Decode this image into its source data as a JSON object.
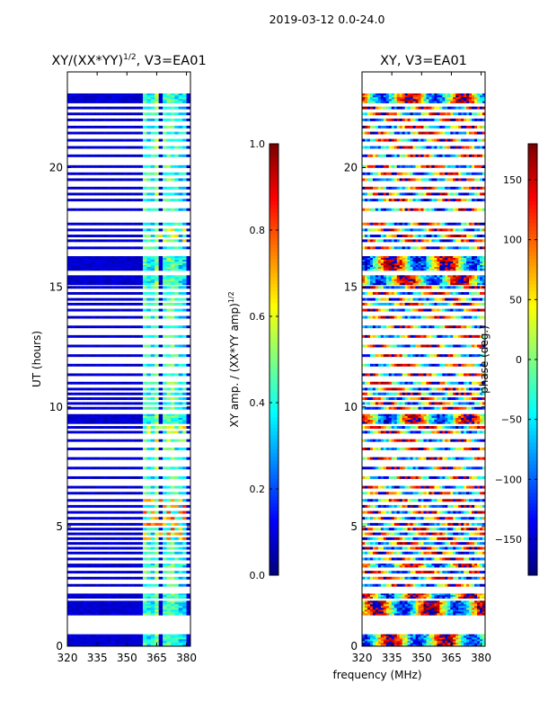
{
  "chart_data": {
    "type": "heatmap",
    "suptitle": "2019-03-12 0.0-24.0",
    "xlabel": "frequency (MHz)",
    "panels": [
      {
        "id": "amp",
        "title": "XY/(XX*YY)",
        "title_superscript": "1/2",
        "title_suffix": ", V3=EA01",
        "ylabel": "UT (hours)",
        "xlim": [
          320,
          382
        ],
        "ylim": [
          0,
          24
        ],
        "xticks": [
          320,
          335,
          350,
          365,
          380
        ],
        "yticks": [
          0,
          5,
          10,
          15,
          20
        ],
        "colormap": "jet",
        "colorbar": {
          "label": "XY amp. / (XX*YY amp)",
          "label_superscript": "1/2",
          "range": [
            0.0,
            1.0
          ],
          "ticks": [
            "0.0",
            "0.2",
            "0.4",
            "0.6",
            "0.8",
            "1.0"
          ],
          "tick_values": [
            0.0,
            0.2,
            0.4,
            0.6,
            0.8,
            1.0
          ]
        },
        "base_value": 0.05,
        "bright_channels": [
          {
            "f0": 358,
            "f1": 360.5,
            "value": 0.45
          },
          {
            "f0": 361,
            "f1": 363,
            "value": 0.38
          },
          {
            "f0": 363.5,
            "f1": 366,
            "value": 0.5
          },
          {
            "f0": 368,
            "f1": 370.5,
            "value": 0.42
          },
          {
            "f0": 371,
            "f1": 373.5,
            "value": 0.46
          },
          {
            "f0": 375,
            "f1": 376.5,
            "value": 0.4
          },
          {
            "f0": 377,
            "f1": 379,
            "value": 0.35
          }
        ]
      },
      {
        "id": "phase",
        "title": "XY, V3=EA01",
        "ylabel": "",
        "xlim": [
          320,
          382
        ],
        "ylim": [
          0,
          24
        ],
        "xticks": [
          320,
          335,
          350,
          365,
          380
        ],
        "yticks": [
          0,
          5,
          10,
          15,
          20
        ],
        "colormap": "jet",
        "colorbar": {
          "label": "phase (deg.)",
          "range": [
            -180,
            180
          ],
          "ticks": [
            "−150",
            "−100",
            "−50",
            "0",
            "50",
            "100",
            "150"
          ],
          "tick_values": [
            -150,
            -100,
            -50,
            0,
            50,
            100,
            150
          ]
        }
      }
    ],
    "scan_intervals_hours": [
      [
        0.0,
        0.5
      ],
      [
        1.3,
        1.9
      ],
      [
        2.0,
        2.2
      ],
      [
        2.5,
        2.6
      ],
      [
        2.8,
        2.9
      ],
      [
        3.05,
        3.15
      ],
      [
        3.3,
        3.45
      ],
      [
        3.6,
        3.7
      ],
      [
        3.85,
        3.95
      ],
      [
        4.05,
        4.15
      ],
      [
        4.25,
        4.35
      ],
      [
        4.45,
        4.55
      ],
      [
        4.65,
        4.75
      ],
      [
        4.85,
        4.95
      ],
      [
        5.05,
        5.15
      ],
      [
        5.3,
        5.4
      ],
      [
        5.55,
        5.65
      ],
      [
        5.8,
        5.9
      ],
      [
        6.05,
        6.15
      ],
      [
        6.35,
        6.45
      ],
      [
        6.6,
        6.7
      ],
      [
        7.0,
        7.1
      ],
      [
        7.4,
        7.5
      ],
      [
        7.8,
        7.9
      ],
      [
        8.2,
        8.3
      ],
      [
        8.55,
        8.65
      ],
      [
        8.9,
        9.0
      ],
      [
        9.1,
        9.2
      ],
      [
        9.3,
        9.7
      ],
      [
        9.9,
        10.0
      ],
      [
        10.1,
        10.2
      ],
      [
        10.3,
        10.4
      ],
      [
        10.5,
        10.6
      ],
      [
        10.7,
        10.8
      ],
      [
        10.95,
        11.05
      ],
      [
        11.3,
        11.4
      ],
      [
        11.7,
        11.8
      ],
      [
        12.1,
        12.2
      ],
      [
        12.5,
        12.6
      ],
      [
        12.9,
        13.0
      ],
      [
        13.3,
        13.4
      ],
      [
        13.7,
        13.8
      ],
      [
        14.0,
        14.1
      ],
      [
        14.25,
        14.35
      ],
      [
        14.45,
        14.55
      ],
      [
        14.7,
        14.8
      ],
      [
        14.95,
        15.05
      ],
      [
        15.1,
        15.5
      ],
      [
        15.7,
        16.3
      ],
      [
        16.6,
        16.7
      ],
      [
        16.9,
        17.0
      ],
      [
        17.1,
        17.2
      ],
      [
        17.35,
        17.45
      ],
      [
        17.6,
        17.7
      ],
      [
        18.2,
        18.3
      ],
      [
        18.6,
        18.7
      ],
      [
        18.85,
        18.95
      ],
      [
        19.1,
        19.2
      ],
      [
        19.45,
        19.55
      ],
      [
        19.7,
        19.8
      ],
      [
        20.0,
        20.1
      ],
      [
        20.45,
        20.55
      ],
      [
        20.8,
        20.9
      ],
      [
        21.1,
        21.2
      ],
      [
        21.4,
        21.5
      ],
      [
        21.65,
        21.75
      ],
      [
        21.95,
        22.05
      ],
      [
        22.2,
        22.3
      ],
      [
        22.45,
        22.55
      ],
      [
        22.7,
        23.1
      ]
    ],
    "rfi_hours_amp": [
      {
        "t0": 4.5,
        "t1": 6.2,
        "value": 0.75
      },
      {
        "t0": 16.8,
        "t1": 17.5,
        "value": 0.6
      },
      {
        "t0": 8.6,
        "t1": 9.2,
        "value": 0.62
      }
    ]
  }
}
